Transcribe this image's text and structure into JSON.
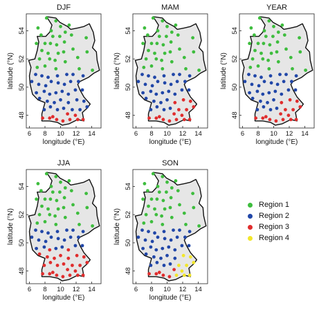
{
  "axes": {
    "xlabel": "longitude (°E)",
    "ylabel": "latitude (°N)",
    "xticks": [
      "6",
      "8",
      "10",
      "12",
      "14"
    ],
    "yticks": [
      "48",
      "50",
      "52",
      "54"
    ],
    "xlim": [
      5.6,
      15.2
    ],
    "ylim": [
      47.1,
      55.2
    ]
  },
  "region_colors": {
    "Region 1": "#3ebd3e",
    "Region 2": "#2147a8",
    "Region 3": "#e02d2d",
    "Region 4": "#f2e62a"
  },
  "map_fill": "#e6e6e6",
  "legend": [
    {
      "label": "Region 1",
      "color": "#3ebd3e"
    },
    {
      "label": "Region 2",
      "color": "#2147a8"
    },
    {
      "label": "Region 3",
      "color": "#e02d2d"
    },
    {
      "label": "Region 4",
      "color": "#f2e62a"
    }
  ],
  "panels": [
    {
      "title": "DJF"
    },
    {
      "title": "MAM"
    },
    {
      "title": "YEAR"
    },
    {
      "title": "JJA"
    },
    {
      "title": "SON"
    }
  ],
  "chart_data": {
    "type": "scatter",
    "note_region_assignment": "station points classified by region per panel",
    "stations": [
      [
        7.1,
        54.2
      ],
      [
        8.2,
        54.9
      ],
      [
        9.4,
        54.7
      ],
      [
        10.0,
        54.3
      ],
      [
        11.1,
        54.4
      ],
      [
        8.8,
        54.0
      ],
      [
        10.6,
        53.9
      ],
      [
        7.5,
        53.7
      ],
      [
        9.0,
        53.6
      ],
      [
        9.9,
        53.6
      ],
      [
        11.4,
        53.7
      ],
      [
        6.9,
        53.1
      ],
      [
        8.0,
        53.1
      ],
      [
        8.7,
        53.1
      ],
      [
        9.5,
        53.0
      ],
      [
        10.5,
        53.2
      ],
      [
        13.3,
        53.5
      ],
      [
        7.6,
        52.6
      ],
      [
        8.4,
        52.4
      ],
      [
        9.7,
        52.4
      ],
      [
        10.4,
        52.5
      ],
      [
        11.6,
        52.7
      ],
      [
        7.3,
        52.0
      ],
      [
        8.6,
        52.0
      ],
      [
        9.3,
        51.9
      ],
      [
        10.6,
        51.8
      ],
      [
        12.2,
        52.1
      ],
      [
        13.4,
        52.5
      ],
      [
        7.0,
        51.4
      ],
      [
        8.0,
        51.5
      ],
      [
        9.4,
        51.3
      ],
      [
        12.4,
        51.3
      ],
      [
        6.8,
        50.9
      ],
      [
        7.6,
        50.8
      ],
      [
        8.4,
        50.7
      ],
      [
        9.6,
        50.8
      ],
      [
        10.8,
        50.9
      ],
      [
        11.6,
        50.9
      ],
      [
        12.9,
        50.8
      ],
      [
        14.1,
        51.2
      ],
      [
        6.3,
        50.4
      ],
      [
        7.2,
        50.2
      ],
      [
        8.1,
        50.1
      ],
      [
        8.8,
        50.4
      ],
      [
        9.7,
        50.3
      ],
      [
        10.5,
        50.2
      ],
      [
        11.3,
        50.4
      ],
      [
        12.3,
        50.4
      ],
      [
        6.9,
        49.6
      ],
      [
        7.9,
        49.7
      ],
      [
        8.6,
        49.5
      ],
      [
        9.4,
        49.6
      ],
      [
        10.2,
        49.7
      ],
      [
        11.0,
        49.5
      ],
      [
        11.9,
        49.8
      ],
      [
        12.8,
        49.8
      ],
      [
        7.3,
        49.2
      ],
      [
        8.3,
        49.0
      ],
      [
        9.2,
        48.9
      ],
      [
        10.0,
        49.1
      ],
      [
        11.0,
        48.9
      ],
      [
        12.1,
        49.1
      ],
      [
        13.0,
        49.0
      ],
      [
        7.9,
        48.4
      ],
      [
        8.7,
        48.6
      ],
      [
        9.6,
        48.4
      ],
      [
        10.4,
        48.5
      ],
      [
        11.5,
        48.4
      ],
      [
        12.5,
        48.4
      ],
      [
        13.4,
        48.6
      ],
      [
        7.7,
        47.8
      ],
      [
        8.6,
        47.8
      ],
      [
        9.5,
        47.7
      ],
      [
        10.3,
        47.6
      ],
      [
        11.2,
        47.7
      ],
      [
        12.2,
        47.7
      ],
      [
        12.9,
        47.7
      ],
      [
        9.0,
        47.9
      ],
      [
        10.9,
        48.1
      ],
      [
        11.9,
        48.0
      ]
    ]
  }
}
